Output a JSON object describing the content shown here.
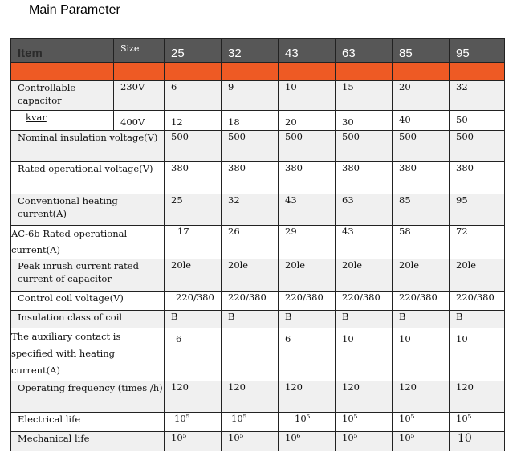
{
  "title": "Main Parameter",
  "header": {
    "item": "Item",
    "size": "Size",
    "sizes": [
      "25",
      "32",
      "43",
      "63",
      "85",
      "95"
    ]
  },
  "rows": {
    "capacitor": {
      "label_line1": "Controllable capacitor",
      "label_line2": "kvar",
      "v230": "230V",
      "v400": "400V",
      "values230": [
        "6",
        "9",
        "10",
        "15",
        "20",
        "32"
      ],
      "values400": [
        "12",
        "18",
        "20",
        "30",
        "40",
        "50"
      ]
    },
    "insulation_voltage": {
      "label": "Nominal insulation voltage(V)",
      "values": [
        "500",
        "500",
        "500",
        "500",
        "500",
        "500"
      ]
    },
    "operational_voltage": {
      "label": "Rated operational voltage(V)",
      "values": [
        "380",
        "380",
        "380",
        "380",
        "380",
        "380"
      ]
    },
    "heating_current": {
      "label": "Conventional heating current(A)",
      "values": [
        "25",
        "32",
        "43",
        "63",
        "85",
        "95"
      ]
    },
    "ac6b_current": {
      "label": "AC-6b Rated operational current(A)",
      "values": [
        "17",
        "26",
        "29",
        "43",
        "58",
        "72"
      ]
    },
    "peak_inrush": {
      "label": "Peak inrush current rated current of capacitor",
      "values": [
        "20le",
        "20le",
        "20le",
        "20le",
        "20le",
        "20le"
      ]
    },
    "coil_voltage": {
      "label": "Control coil voltage(V)",
      "values": [
        "220/380",
        "220/380",
        "220/380",
        "220/380",
        "220/380",
        "220/380"
      ]
    },
    "coil_insulation": {
      "label": "Insulation class of coil",
      "values": [
        "B",
        "B",
        "B",
        "B",
        "B",
        "B"
      ]
    },
    "auxiliary_contact": {
      "label": "The auxiliary contact is specified with heating current(A)",
      "values": [
        "6",
        "",
        "6",
        "10",
        "10",
        "10"
      ]
    },
    "operating_frequency": {
      "label": "Operating frequency (times /h)",
      "values": [
        "120",
        "120",
        "120",
        "120",
        "120",
        "120"
      ]
    },
    "electrical_life": {
      "label": "Electrical life",
      "values": [
        "10⁵",
        "10⁵",
        "10⁵",
        "10⁵",
        "10⁵",
        "10⁵"
      ]
    },
    "mechanical_life": {
      "label": "Mechanical life",
      "values": [
        "10⁵",
        "10⁵",
        "10⁶",
        "10⁵",
        "10⁵",
        "10"
      ]
    }
  }
}
